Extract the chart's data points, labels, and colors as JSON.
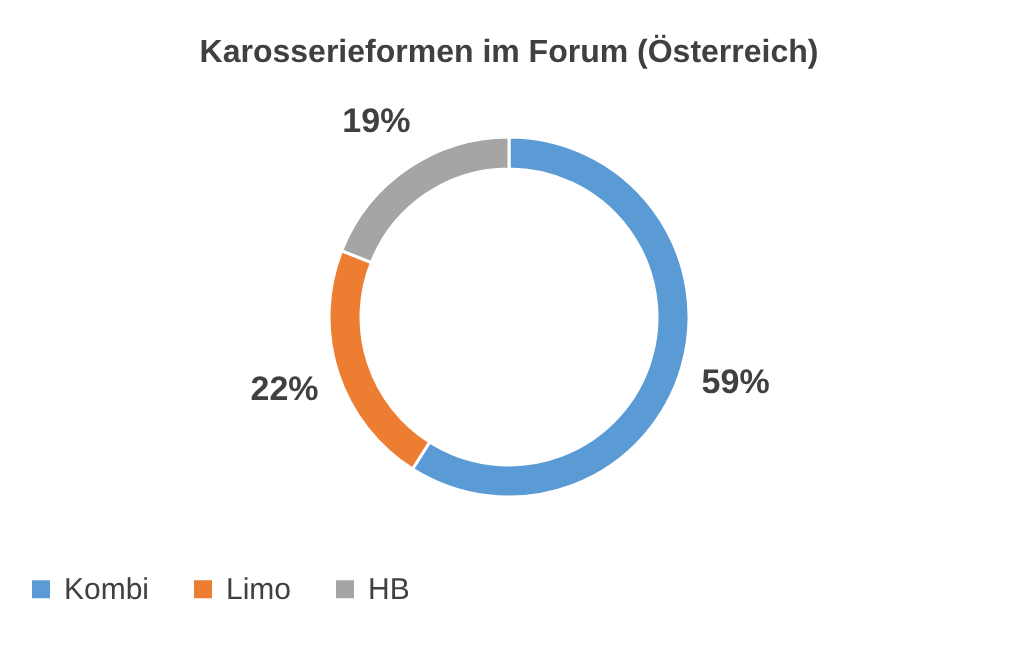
{
  "chart_data": {
    "type": "donut",
    "title": "Karosserieformen im Forum (Österreich)",
    "categories": [
      "Kombi",
      "Limo",
      "HB"
    ],
    "values": [
      59,
      22,
      19
    ],
    "colors": [
      "#5b9bd5",
      "#ed7d31",
      "#a5a5a5"
    ],
    "value_labels": [
      "59%",
      "22%",
      "19%"
    ],
    "legend": "bottom"
  }
}
